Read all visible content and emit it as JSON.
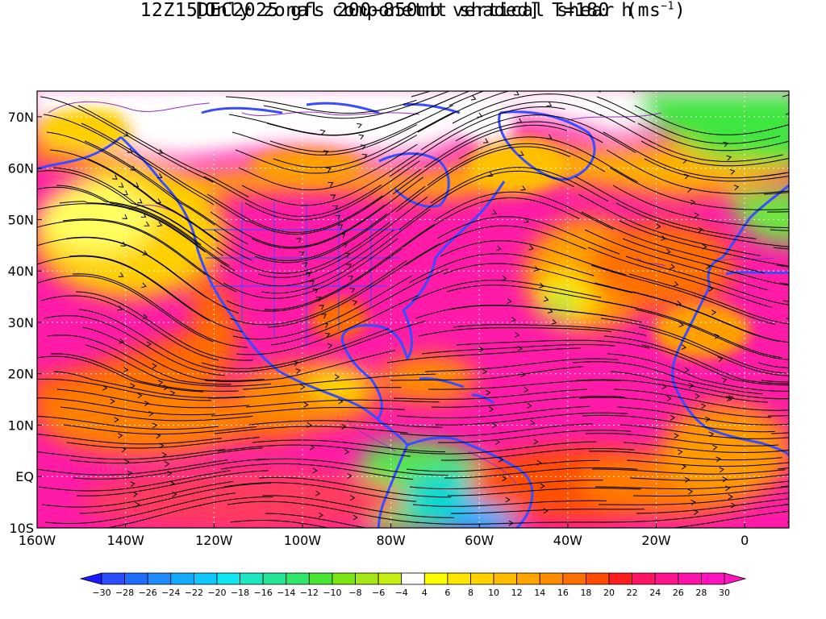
{
  "title": {
    "line1": "12Z15DEC2025 gfs 200−850mb vertical shear (ms",
    "line1_sup": "−1",
    "line1_end": ")",
    "line2": "[Only zonal componetnt shaded] T=180 h"
  },
  "map": {
    "lon_range": [
      -160,
      10
    ],
    "lat_range": [
      -10,
      75
    ],
    "lon_ticks": [
      {
        "value": -160,
        "label": "160W"
      },
      {
        "value": -140,
        "label": "140W"
      },
      {
        "value": -120,
        "label": "120W"
      },
      {
        "value": -100,
        "label": "100W"
      },
      {
        "value": -80,
        "label": "80W"
      },
      {
        "value": -60,
        "label": "60W"
      },
      {
        "value": -40,
        "label": "40W"
      },
      {
        "value": -20,
        "label": "20W"
      },
      {
        "value": 0,
        "label": "0"
      }
    ],
    "lat_ticks": [
      {
        "value": 70,
        "label": "70N"
      },
      {
        "value": 60,
        "label": "60N"
      },
      {
        "value": 50,
        "label": "50N"
      },
      {
        "value": 40,
        "label": "40N"
      },
      {
        "value": 30,
        "label": "30N"
      },
      {
        "value": 20,
        "label": "20N"
      },
      {
        "value": 10,
        "label": "10N"
      },
      {
        "value": 0,
        "label": "EQ"
      },
      {
        "value": -10,
        "label": "10S"
      }
    ],
    "grid": true,
    "coastline_color": "#3a4cff",
    "contour_color": "#9a2cc0",
    "streamline_color": "#000000"
  },
  "colorbar": {
    "labels": [
      "−30",
      "−28",
      "−26",
      "−24",
      "−22",
      "−20",
      "−18",
      "−16",
      "−14",
      "−12",
      "−10",
      "−8",
      "−6",
      "−4",
      "4",
      "6",
      "8",
      "10",
      "12",
      "14",
      "16",
      "18",
      "20",
      "22",
      "24",
      "26",
      "28",
      "30"
    ],
    "colors": [
      "#1a1aff",
      "#2a4dff",
      "#1f6cff",
      "#1e8cff",
      "#14aaff",
      "#10c8ff",
      "#10e6f0",
      "#1be6c0",
      "#22e696",
      "#2ee66a",
      "#48e632",
      "#7ce614",
      "#a6e614",
      "#c6f014",
      "#ffffff",
      "#ffff00",
      "#ffe600",
      "#ffd200",
      "#ffbc00",
      "#ffa500",
      "#ff8c00",
      "#ff6e00",
      "#ff4a00",
      "#ff1e1e",
      "#ff1464",
      "#ff148c",
      "#ff14aa",
      "#ff14be",
      "#ff14be"
    ]
  }
}
